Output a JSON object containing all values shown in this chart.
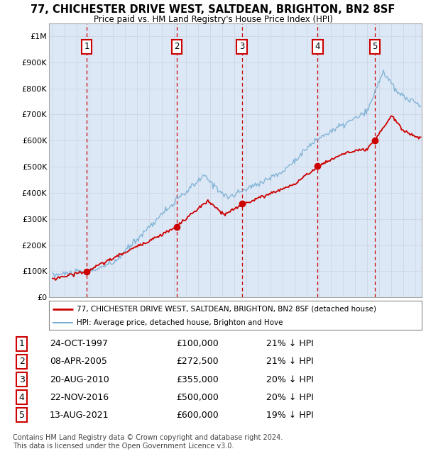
{
  "title": "77, CHICHESTER DRIVE WEST, SALTDEAN, BRIGHTON, BN2 8SF",
  "subtitle": "Price paid vs. HM Land Registry's House Price Index (HPI)",
  "legend_line1": "77, CHICHESTER DRIVE WEST, SALTDEAN, BRIGHTON, BN2 8SF (detached house)",
  "legend_line2": "HPI: Average price, detached house, Brighton and Hove",
  "footer1": "Contains HM Land Registry data © Crown copyright and database right 2024.",
  "footer2": "This data is licensed under the Open Government Licence v3.0.",
  "sales": [
    {
      "num": 1,
      "date": "24-OCT-1997",
      "price": 100000,
      "hpi_pct": "21% ↓ HPI",
      "year": 1997.81
    },
    {
      "num": 2,
      "date": "08-APR-2005",
      "price": 272500,
      "hpi_pct": "21% ↓ HPI",
      "year": 2005.27
    },
    {
      "num": 3,
      "date": "20-AUG-2010",
      "price": 355000,
      "hpi_pct": "20% ↓ HPI",
      "year": 2010.63
    },
    {
      "num": 4,
      "date": "22-NOV-2016",
      "price": 500000,
      "hpi_pct": "20% ↓ HPI",
      "year": 2016.89
    },
    {
      "num": 5,
      "date": "13-AUG-2021",
      "price": 600000,
      "hpi_pct": "19% ↓ HPI",
      "year": 2021.62
    }
  ],
  "hpi_color": "#7aafd4",
  "price_color": "#cc0000",
  "sale_dot_color": "#cc0000",
  "dashed_line_color": "#cc0000",
  "grid_color": "#d0d8e8",
  "plot_bg_color": "#dce8f5",
  "ylim": [
    0,
    1050000
  ],
  "xlim_start": 1994.7,
  "xlim_end": 2025.5,
  "yticks": [
    0,
    100000,
    200000,
    300000,
    400000,
    500000,
    600000,
    700000,
    800000,
    900000,
    1000000
  ],
  "ytick_labels": [
    "£0",
    "£100K",
    "£200K",
    "£300K",
    "£400K",
    "£500K",
    "£600K",
    "£700K",
    "£800K",
    "£900K",
    "£1M"
  ],
  "xticks": [
    1995,
    1996,
    1997,
    1998,
    1999,
    2000,
    2001,
    2002,
    2003,
    2004,
    2005,
    2006,
    2007,
    2008,
    2009,
    2010,
    2011,
    2012,
    2013,
    2014,
    2015,
    2016,
    2017,
    2018,
    2019,
    2020,
    2021,
    2022,
    2023,
    2024,
    2025
  ]
}
